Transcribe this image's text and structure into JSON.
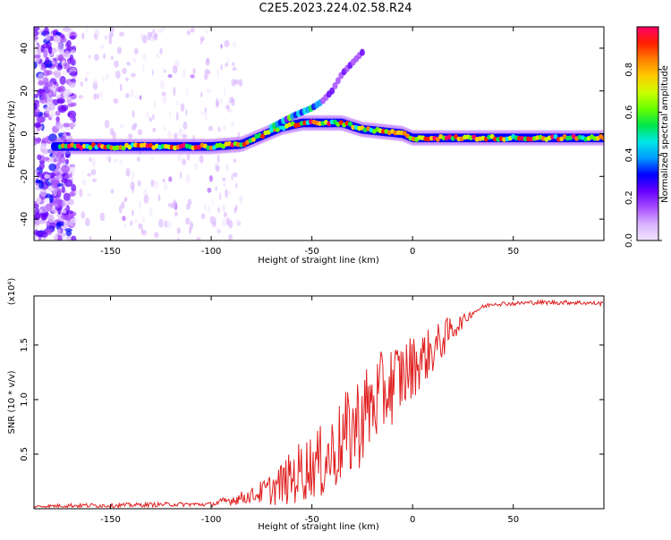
{
  "title": "C2E5.2023.224.02.58.R24",
  "colors": {
    "snr_line": "#e02020",
    "colormap": [
      "#f2e6ff",
      "#d9b3ff",
      "#a64dff",
      "#6600ff",
      "#0000ff",
      "#0099ff",
      "#00e6e6",
      "#00e64d",
      "#66ff00",
      "#ccff00",
      "#ffcc00",
      "#ff8000",
      "#ff2000",
      "#ff0066"
    ]
  },
  "chart_data": [
    {
      "type": "heatmap",
      "title": "C2E5.2023.224.02.58.R24",
      "xlabel": "Height of straight line (km)",
      "ylabel": "Frequency (Hz)",
      "xlim": [
        -188,
        95
      ],
      "ylim": [
        -50,
        50
      ],
      "xticks": [
        -150,
        -100,
        -50,
        0,
        50
      ],
      "yticks": [
        -40,
        -20,
        0,
        20,
        40
      ],
      "colorbar": {
        "label": "Normalized spectral amplitude",
        "range": [
          0,
          1
        ],
        "ticks": [
          "0.0",
          "0.2",
          "0.4",
          "0.6",
          "0.8"
        ]
      },
      "main_ridge": {
        "x": [
          -175,
          -150,
          -120,
          -100,
          -85,
          -75,
          -65,
          -55,
          -45,
          -35,
          -25,
          -15,
          -5,
          0,
          10,
          30,
          60,
          95
        ],
        "y": [
          -6,
          -6,
          -6,
          -6,
          -5,
          -1,
          3,
          5,
          5,
          5,
          2,
          1,
          0,
          -2,
          -2,
          -2,
          -2,
          -2
        ]
      },
      "secondary_branch": {
        "x": [
          -70,
          -60,
          -50,
          -45,
          -40,
          -35,
          -25
        ],
        "y": [
          3,
          8,
          12,
          15,
          20,
          28,
          38
        ]
      }
    },
    {
      "type": "line",
      "title": "",
      "xlabel": "Height of straight line (km)",
      "ylabel": "SNR (10 * v/v)",
      "y_multiplier": "(x10⁴)",
      "xlim": [
        -188,
        95
      ],
      "ylim": [
        0,
        1.95
      ],
      "xticks": [
        -150,
        -100,
        -50,
        0,
        50
      ],
      "yticks": [
        "0.5",
        "1.0",
        "1.5"
      ],
      "series": [
        {
          "x": [
            -188,
            -170,
            -150,
            -120,
            -100,
            -90,
            -80,
            -70,
            -60,
            -55,
            -50,
            -45,
            -40,
            -35,
            -30,
            -25,
            -20,
            -15,
            -10,
            -5,
            0,
            5,
            10,
            15,
            20,
            25,
            30,
            35,
            40,
            50,
            60,
            70,
            80,
            95
          ],
          "y": [
            0.02,
            0.03,
            0.03,
            0.04,
            0.04,
            0.08,
            0.12,
            0.18,
            0.28,
            0.35,
            0.4,
            0.42,
            0.5,
            0.62,
            0.72,
            0.85,
            0.95,
            1.05,
            1.15,
            1.22,
            1.3,
            1.38,
            1.45,
            1.55,
            1.65,
            1.72,
            1.8,
            1.85,
            1.88,
            1.88,
            1.89,
            1.89,
            1.89,
            1.88
          ],
          "noise_amplitude": [
            0.01,
            0.02,
            0.02,
            0.02,
            0.02,
            0.05,
            0.07,
            0.15,
            0.25,
            0.3,
            0.3,
            0.35,
            0.38,
            0.4,
            0.45,
            0.45,
            0.42,
            0.4,
            0.38,
            0.35,
            0.3,
            0.25,
            0.22,
            0.18,
            0.12,
            0.06,
            0.03,
            0.02,
            0.02,
            0.02,
            0.02,
            0.02,
            0.02,
            0.02
          ]
        }
      ]
    }
  ]
}
